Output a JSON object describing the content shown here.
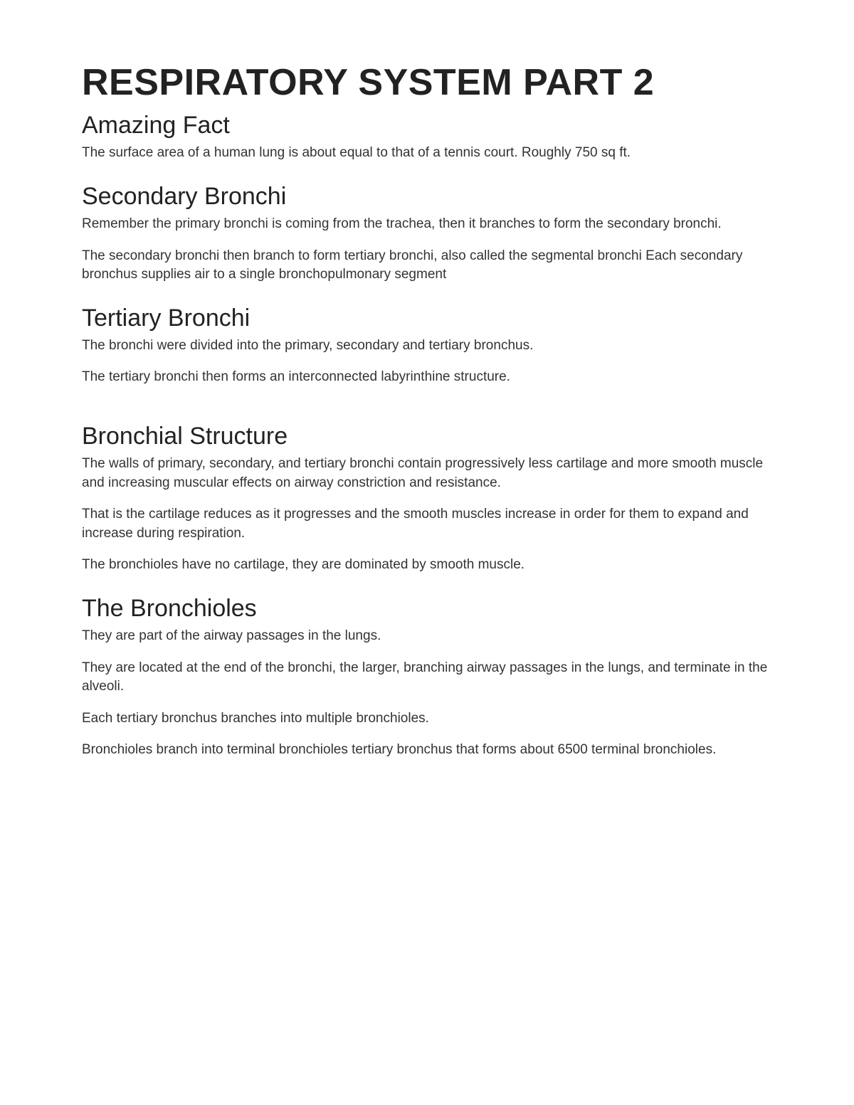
{
  "title": "RESPIRATORY SYSTEM PART 2",
  "sections": [
    {
      "heading": "Amazing Fact",
      "paragraphs": [
        "The surface area of a human lung is about equal to that of a tennis court. Roughly 750 sq ft."
      ]
    },
    {
      "heading": "Secondary Bronchi",
      "paragraphs": [
        "Remember the primary bronchi is coming from the trachea, then it branches to form the secondary bronchi.",
        "The secondary bronchi then branch to form tertiary bronchi, also called the segmental bronchi Each secondary bronchus supplies air to a single bronchopulmonary segment"
      ]
    },
    {
      "heading": "Tertiary Bronchi",
      "paragraphs": [
        "The bronchi were divided into the primary, secondary and tertiary bronchus.",
        "The tertiary bronchi then forms an interconnected labyrinthine structure."
      ]
    },
    {
      "heading": "Bronchial Structure",
      "paragraphs": [
        "The walls of primary, secondary, and tertiary bronchi contain progressively less cartilage and more smooth muscle and increasing muscular effects on airway constriction and resistance.",
        "That is the cartilage reduces as it progresses and the smooth muscles increase in order for them to expand and increase during respiration.",
        "The bronchioles have no cartilage, they are dominated by smooth muscle."
      ]
    },
    {
      "heading": "The Bronchioles",
      "paragraphs": [
        "They are part of the airway passages in the lungs.",
        "They are located at the end of the bronchi, the larger, branching airway passages in the lungs, and terminate in the alveoli.",
        "Each tertiary bronchus branches into multiple bronchioles.",
        "Bronchioles branch into terminal bronchioles tertiary bronchus that forms about 6500 terminal bronchioles."
      ]
    }
  ]
}
